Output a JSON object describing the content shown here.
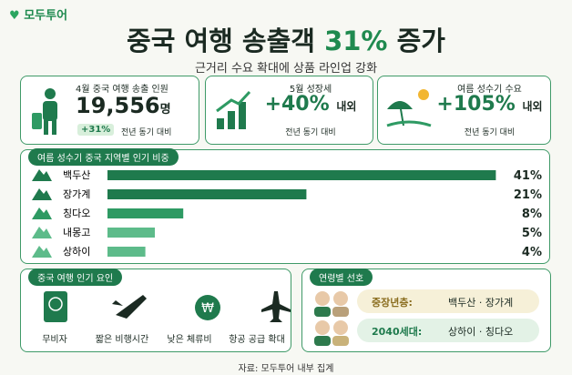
{
  "logo": "모두투어",
  "header": {
    "title_main": "중국 여행 송출객",
    "title_highlight": "31%",
    "title_end": "증가",
    "subtitle": "근거리 수요 확대에 상품 라인업 강화"
  },
  "stats": [
    {
      "label": "4월 중국 여행 송출 인원",
      "value": "19,556",
      "unit": "명",
      "badge": "+31%",
      "note": "전년 동기 대비"
    },
    {
      "label": "5월 성장세",
      "value": "+40%",
      "unit": "내외",
      "note": "전년 동기 대비"
    },
    {
      "label": "여름 성수기 수요",
      "value": "+105%",
      "unit": "내외",
      "note": "전년 동기 대비"
    }
  ],
  "chart_data": {
    "type": "bar",
    "orientation": "horizontal",
    "title": "여름 성수기 중국 지역별 인기 비중",
    "categories": [
      "백두산",
      "장가계",
      "칭다오",
      "내몽고",
      "상하이"
    ],
    "values": [
      41,
      21,
      8,
      5,
      4
    ],
    "value_labels": [
      "41%",
      "21%",
      "8%",
      "5%",
      "4%"
    ],
    "colors": [
      "#1f7a4d",
      "#1f7a4d",
      "#2e9a63",
      "#5dbb8a",
      "#5dbb8a"
    ]
  },
  "factors": {
    "title": "중국 여행 인기 요인",
    "items": [
      "무비자",
      "짧은 비행시간",
      "낮은 체류비",
      "항공 공급 확대"
    ]
  },
  "ages": {
    "title": "연령별 선호",
    "rows": [
      {
        "group": "중장년층:",
        "places": "백두산 · 장가계"
      },
      {
        "group": "2040세대:",
        "places": "상하이 · 칭다오"
      }
    ]
  },
  "footer": "자료: 모두투어 내부 집계"
}
